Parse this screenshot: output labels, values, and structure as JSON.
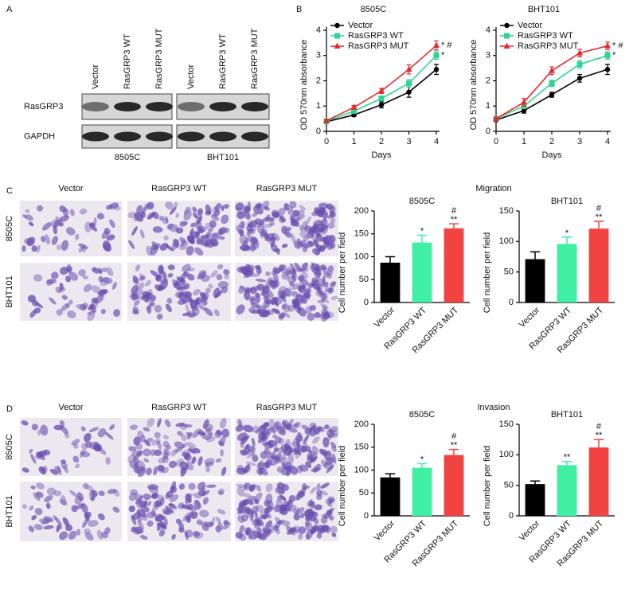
{
  "panel_labels": [
    "A",
    "B",
    "C",
    "D"
  ],
  "blot": {
    "lanes": [
      "Vector",
      "RasGRP3 WT",
      "RasGRP3 MUT",
      "Vector",
      "RasGRP3 WT",
      "RasGRP3 MUT"
    ],
    "rows": [
      "RasGRP3",
      "GAPDH"
    ],
    "cell_lines": [
      "8505C",
      "BHT101"
    ]
  },
  "migration": {
    "title": "Migration",
    "columns": [
      "Vector",
      "RasGRP3 WT",
      "RasGRP3 MUT"
    ],
    "rows": [
      "8505C",
      "BHT101"
    ]
  },
  "invasion": {
    "title": "Invasion",
    "columns": [
      "Vector",
      "RasGRP3 WT",
      "RasGRP3 MUT"
    ],
    "rows": [
      "8505C",
      "BHT101"
    ]
  },
  "chart_data": [
    {
      "type": "line",
      "title": "8505C",
      "x_label": "Days",
      "y_label": "OD 570nm absorbance",
      "x": [
        0,
        1,
        2,
        3,
        4
      ],
      "xlim": [
        0,
        4
      ],
      "xticks": [
        0,
        1,
        2,
        3,
        4
      ],
      "ylim": [
        0,
        4
      ],
      "yticks": [
        0,
        1,
        2,
        3,
        4
      ],
      "series": [
        {
          "name": "Vector",
          "color": "#000000",
          "marker": "circle",
          "values": [
            0.38,
            0.65,
            1.05,
            1.55,
            2.45
          ],
          "errors": [
            0.05,
            0.06,
            0.12,
            0.2,
            0.2
          ]
        },
        {
          "name": "RasGRP3 WT",
          "color": "#2fd393",
          "marker": "square",
          "values": [
            0.4,
            0.8,
            1.3,
            1.9,
            3.0
          ],
          "errors": [
            0.05,
            0.07,
            0.1,
            0.15,
            0.15
          ],
          "sig": "*"
        },
        {
          "name": "RasGRP3 MUT",
          "color": "#e8292b",
          "marker": "triangle",
          "values": [
            0.42,
            0.95,
            1.6,
            2.45,
            3.4
          ],
          "errors": [
            0.05,
            0.07,
            0.1,
            0.18,
            0.18
          ],
          "sig": "* #"
        }
      ]
    },
    {
      "type": "line",
      "title": "BHT101",
      "x_label": "Days",
      "y_label": "OD 570nm absorbance",
      "x": [
        0,
        1,
        2,
        3,
        4
      ],
      "xlim": [
        0,
        4
      ],
      "xticks": [
        0,
        1,
        2,
        3,
        4
      ],
      "ylim": [
        0,
        4
      ],
      "yticks": [
        0,
        1,
        2,
        3,
        4
      ],
      "series": [
        {
          "name": "Vector",
          "color": "#000000",
          "marker": "circle",
          "values": [
            0.45,
            0.82,
            1.45,
            2.1,
            2.45
          ],
          "errors": [
            0.05,
            0.1,
            0.1,
            0.15,
            0.2
          ]
        },
        {
          "name": "RasGRP3 WT",
          "color": "#2fd393",
          "marker": "square",
          "values": [
            0.5,
            1.0,
            1.9,
            2.65,
            3.0
          ],
          "errors": [
            0.05,
            0.1,
            0.12,
            0.15,
            0.15
          ],
          "sig": "*"
        },
        {
          "name": "RasGRP3 MUT",
          "color": "#e8292b",
          "marker": "triangle",
          "values": [
            0.5,
            1.15,
            2.4,
            3.1,
            3.38
          ],
          "errors": [
            0.05,
            0.15,
            0.15,
            0.15,
            0.15
          ],
          "sig": "* #"
        }
      ]
    },
    {
      "type": "bar",
      "title": "8505C",
      "y_label": "Cell number per field",
      "categories": [
        "Vector",
        "RasGRP3 WT",
        "RasGRP3 MUT"
      ],
      "colors": [
        "#000000",
        "#3ff0a4",
        "#f24343"
      ],
      "values": [
        87,
        131,
        162
      ],
      "errors": [
        13,
        16,
        10
      ],
      "annotations": [
        null,
        [
          "*"
        ],
        [
          "#",
          "**"
        ]
      ],
      "ylim": [
        0,
        200
      ],
      "yticks": [
        0,
        50,
        100,
        150,
        200
      ]
    },
    {
      "type": "bar",
      "title": "BHT101",
      "y_label": "Cell number per field",
      "categories": [
        "Vector",
        "RasGRP3 WT",
        "RasGRP3 MUT"
      ],
      "colors": [
        "#000000",
        "#3ff0a4",
        "#f24343"
      ],
      "values": [
        71,
        96,
        121
      ],
      "errors": [
        12,
        11,
        12
      ],
      "annotations": [
        null,
        [
          "*"
        ],
        [
          "#",
          "**"
        ]
      ],
      "ylim": [
        0,
        150
      ],
      "yticks": [
        0,
        50,
        100,
        150
      ]
    },
    {
      "type": "bar",
      "title": "8505C",
      "y_label": "Cell number per field",
      "categories": [
        "Vector",
        "RasGRP3 WT",
        "RasGRP3 MUT"
      ],
      "colors": [
        "#000000",
        "#3ff0a4",
        "#f24343"
      ],
      "values": [
        84,
        105,
        133
      ],
      "errors": [
        8,
        9,
        12
      ],
      "annotations": [
        null,
        [
          "*"
        ],
        [
          "#",
          "**"
        ]
      ],
      "ylim": [
        0,
        200
      ],
      "yticks": [
        0,
        50,
        100,
        150,
        200
      ]
    },
    {
      "type": "bar",
      "title": "BHT101",
      "y_label": "Cell number per field",
      "categories": [
        "Vector",
        "RasGRP3 WT",
        "RasGRP3 MUT"
      ],
      "colors": [
        "#000000",
        "#3ff0a4",
        "#f24343"
      ],
      "values": [
        52,
        83,
        112
      ],
      "errors": [
        5,
        6,
        13
      ],
      "annotations": [
        null,
        [
          "**"
        ],
        [
          "#",
          "**"
        ]
      ],
      "ylim": [
        0,
        150
      ],
      "yticks": [
        0,
        50,
        100,
        150
      ]
    }
  ]
}
